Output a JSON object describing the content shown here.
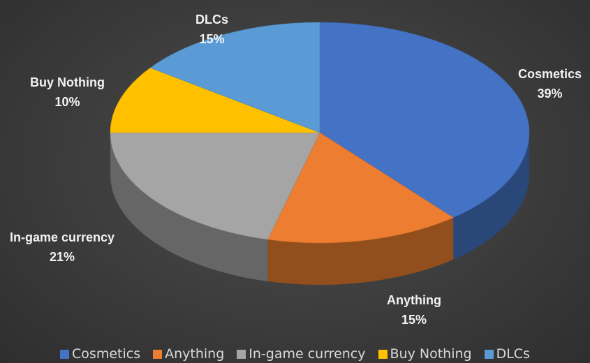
{
  "chart_data": {
    "type": "pie",
    "title": "",
    "three_d": true,
    "categories": [
      "Cosmetics",
      "Anything",
      "In-game currency",
      "Buy Nothing",
      "DLCs"
    ],
    "values": [
      39,
      15,
      21,
      10,
      15
    ],
    "labels": [
      "39%",
      "15%",
      "21%",
      "10%",
      "15%"
    ],
    "colors": [
      "#4472c4",
      "#ed7d31",
      "#a5a5a5",
      "#ffc000",
      "#5b9bd5"
    ],
    "legend_position": "bottom"
  }
}
